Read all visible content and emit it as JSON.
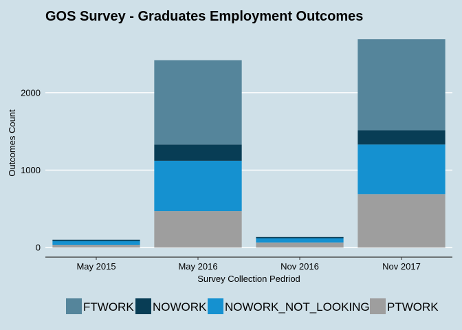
{
  "chart_data": {
    "type": "bar",
    "stacked": true,
    "title": "GOS Survey - Graduates Employment Outcomes",
    "xlabel": "Survey Collection Pedriod",
    "ylabel": "Outcomes Count",
    "categories": [
      "May 2015",
      "May 2016",
      "Nov 2016",
      "Nov 2017"
    ],
    "yticks": [
      "0",
      "1000",
      "2000"
    ],
    "ylim": [
      0,
      2800
    ],
    "grid": true,
    "legend_position": "bottom",
    "series": [
      {
        "name": "PTWORK",
        "color": "#9e9e9e",
        "values": [
          35,
          470,
          65,
          690
        ]
      },
      {
        "name": "NOWORK_NOT_LOOKING",
        "color": "#1591d0",
        "values": [
          50,
          650,
          55,
          640
        ]
      },
      {
        "name": "NOWORK",
        "color": "#083d55",
        "values": [
          15,
          210,
          15,
          185
        ]
      },
      {
        "name": "FTWORK",
        "color": "#55859b",
        "values": [
          0,
          1090,
          0,
          1175
        ]
      }
    ],
    "legend_order": [
      "FTWORK",
      "NOWORK",
      "NOWORK_NOT_LOOKING",
      "PTWORK"
    ]
  }
}
